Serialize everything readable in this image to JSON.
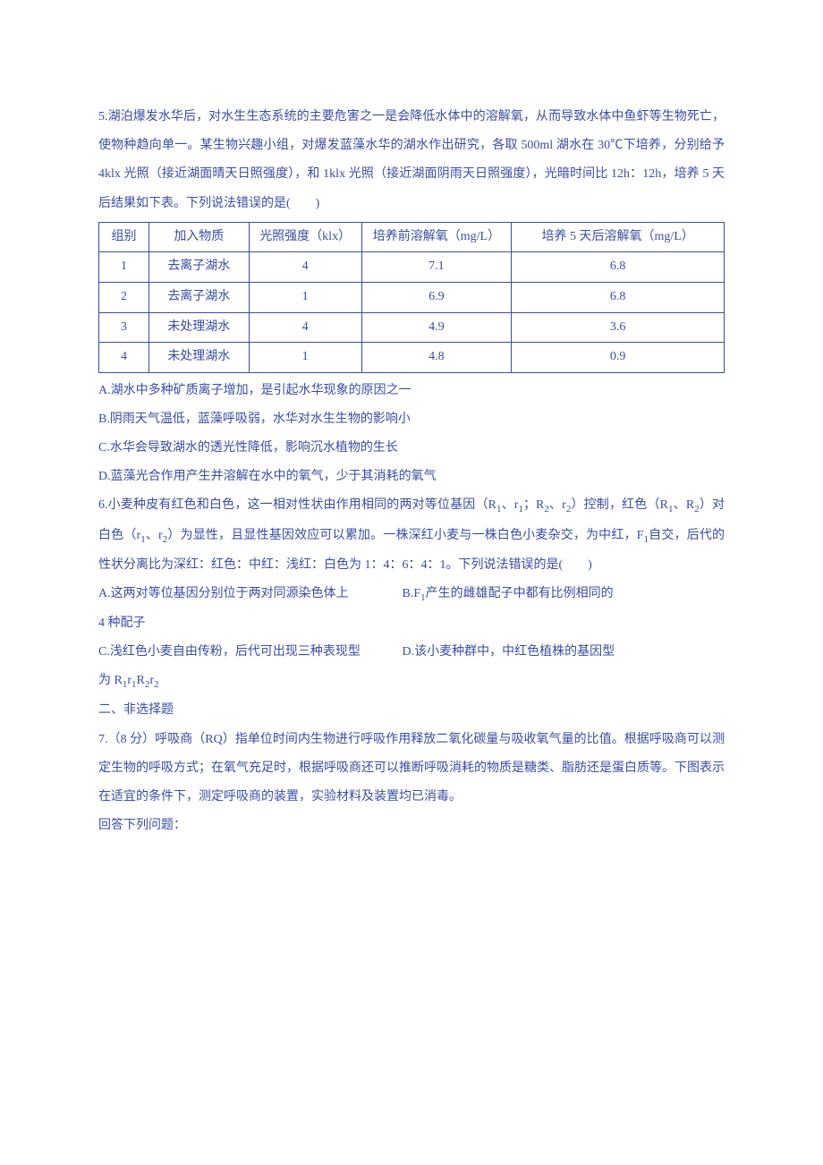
{
  "q5": {
    "intro": "5.湖泊爆发水华后，对水生生态系统的主要危害之一是会降低水体中的溶解氧，从而导致水体中鱼虾等生物死亡，使物种趋向单一。某生物兴趣小组，对爆发蓝藻水华的湖水作出研究，各取 500ml 湖水在 30℃下培养，分别给予 4klx 光照（接近湖面晴天日照强度），和 1klx 光照（接近湖面阴雨天日照强度），光暗时间比 12h：12h，培养 5 天后结果如下表。下列说法错误的是(　　)",
    "headers": [
      "组别",
      "加入物质",
      "光照强度（klx）",
      "培养前溶解氧（mg/L）",
      "培养 5 天后溶解氧（mg/L）"
    ],
    "rows": [
      [
        "1",
        "去离子湖水",
        "4",
        "7.1",
        "6.8"
      ],
      [
        "2",
        "去离子湖水",
        "1",
        "6.9",
        "6.8"
      ],
      [
        "3",
        "未处理湖水",
        "4",
        "4.9",
        "3.6"
      ],
      [
        "4",
        "未处理湖水",
        "1",
        "4.8",
        "0.9"
      ]
    ],
    "optA": "A.湖水中多种矿质离子增加，是引起水华现象的原因之一",
    "optB": "B.阴雨天气温低，蓝藻呼吸弱，水华对水生生物的影响小",
    "optC": "C.水华会导致湖水的透光性降低，影响沉水植物的生长",
    "optD": "D.蓝藻光合作用产生并溶解在水中的氧气，少于其消耗的氧气"
  },
  "q6": {
    "optA": "A.这两对等位基因分别位于两对同源染色体上",
    "optB_left": "B.F",
    "optB_sub": "1",
    "optB_right": "产生的雌雄配子中都有比例相同的",
    "optB_line2": "4 种配子",
    "optC": "C.浅红色小麦自由传粉，后代可出现三种表现型",
    "optD_text": "D.该小麦种群中，中红色植株的基因型"
  },
  "section2": "二、非选择题",
  "q7": {
    "intro": "7.（8 分）呼吸商（RQ）指单位时间内生物进行呼吸作用释放二氧化碳量与吸收氧气量的比值。根据呼吸商可以测定生物的呼吸方式；在氧气充足时，根据呼吸商还可以推断呼吸消耗的物质是糖类、脂肪还是蛋白质等。下图表示在适宜的条件下，测定呼吸商的装置，实验材料及装置均已消毒。",
    "answer": "回答下列问题："
  }
}
